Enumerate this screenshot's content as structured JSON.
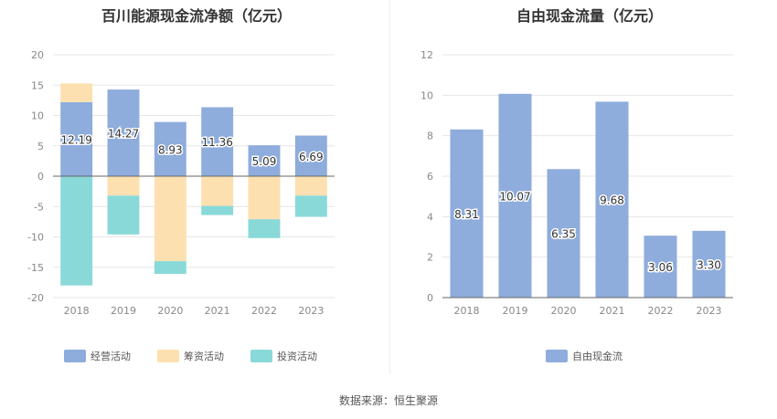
{
  "source_text": "数据来源：恒生聚源",
  "chart_data": [
    {
      "type": "bar",
      "stacked": true,
      "title": "百川能源现金流净额（亿元）",
      "categories": [
        "2018",
        "2019",
        "2020",
        "2021",
        "2022",
        "2023"
      ],
      "series": [
        {
          "name": "经营活动",
          "color": "#8eacdc",
          "values": [
            12.19,
            14.27,
            8.93,
            11.36,
            5.09,
            6.69
          ],
          "labels": [
            "12.19",
            "14.27",
            "8.93",
            "11.36",
            "5.09",
            "6.69"
          ]
        },
        {
          "name": "筹资活动",
          "color": "#fde0b0",
          "values": [
            3.1,
            -3.2,
            -14.0,
            -4.9,
            -7.1,
            -3.2
          ]
        },
        {
          "name": "投资活动",
          "color": "#8ad9d9",
          "values": [
            -18.0,
            -6.4,
            -2.1,
            -1.5,
            -3.1,
            -3.5
          ]
        }
      ],
      "ylim": [
        -20,
        20
      ],
      "yticks": [
        "20",
        "15",
        "10",
        "5",
        "0",
        "-5",
        "-10",
        "-15",
        "-20"
      ],
      "legend_position": "bottom",
      "grid": true
    },
    {
      "type": "bar",
      "title": "自由现金流量（亿元）",
      "categories": [
        "2018",
        "2019",
        "2020",
        "2021",
        "2022",
        "2023"
      ],
      "series": [
        {
          "name": "自由现金流",
          "color": "#8eacdc",
          "values": [
            8.31,
            10.07,
            6.35,
            9.68,
            3.06,
            3.3
          ],
          "labels": [
            "8.31",
            "10.07",
            "6.35",
            "9.68",
            "3.06",
            "3.30"
          ]
        }
      ],
      "ylim": [
        0,
        12
      ],
      "yticks": [
        "12",
        "10",
        "8",
        "6",
        "4",
        "2",
        "0"
      ],
      "legend_position": "bottom",
      "grid": true
    }
  ]
}
